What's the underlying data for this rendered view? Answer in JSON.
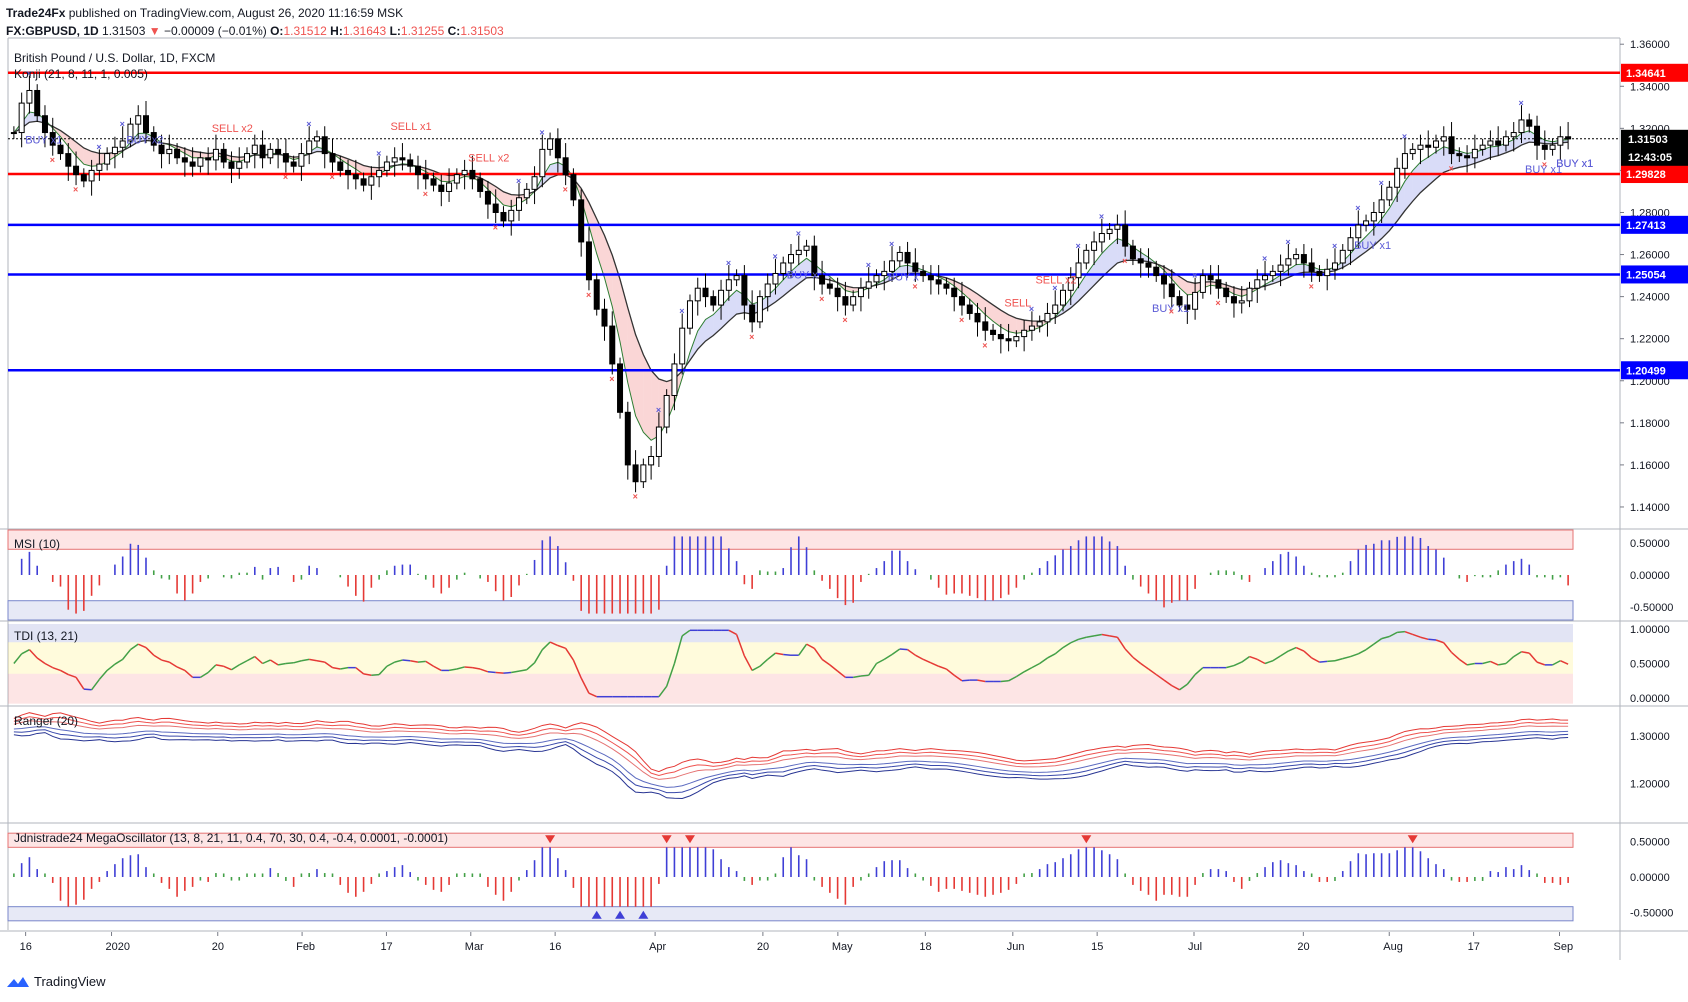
{
  "header": {
    "line1_author": "Trade24Fx",
    "line1_text": "published on TradingView.com, August 26, 2020 11:16:59 MSK",
    "symbol": "FX:GBPUSD, 1D",
    "last": "1.31503",
    "change": "−0.00009 (−0.01%)",
    "o_label": "O:",
    "o": "1.31512",
    "h_label": "H:",
    "h": "1.31643",
    "l_label": "L:",
    "l": "1.31255",
    "c_label": "C:",
    "c": "1.31503"
  },
  "footer": {
    "brand": "TradingView"
  },
  "colors": {
    "up": "#000000",
    "down": "#000000",
    "red_line": "#ff0000",
    "blue_line": "#0000ff",
    "buy": "#5b5bd6",
    "sell": "#ef5350"
  },
  "chart_data": [
    {
      "type": "candlestick",
      "title": "British Pound / U.S. Dollar, 1D, FXCM",
      "subtitle": "Konji (21, 8, 11, 1, 0.005)",
      "ylim": [
        1.13,
        1.362
      ],
      "y_ticks": [
        "1.36000",
        "1.34000",
        "1.32000",
        "1.30000",
        "1.28000",
        "1.26000",
        "1.24000",
        "1.22000",
        "1.20000",
        "1.18000",
        "1.16000",
        "1.14000"
      ],
      "x_ticks": [
        "16",
        "2020",
        "20",
        "Feb",
        "17",
        "Mar",
        "16",
        "Apr",
        "20",
        "May",
        "18",
        "Jun",
        "15",
        "Jul",
        "20",
        "Aug",
        "17",
        "Sep"
      ],
      "horizontal_lines": [
        {
          "value": 1.34641,
          "label": "1.34641",
          "color": "red"
        },
        {
          "value": 1.29828,
          "label": "1.29828",
          "color": "red"
        },
        {
          "value": 1.27413,
          "label": "1.27413",
          "color": "blue"
        },
        {
          "value": 1.25054,
          "label": "1.25054",
          "color": "blue"
        },
        {
          "value": 1.20499,
          "label": "1.20499",
          "color": "blue"
        }
      ],
      "last_price_label": "1.31503",
      "countdown_label": "12:43:05",
      "signals": [
        {
          "text": "SELL x2",
          "kind": "sell",
          "i": 27
        },
        {
          "text": "SELL x1",
          "kind": "sell",
          "i": 50
        },
        {
          "text": "SELL x2",
          "kind": "sell",
          "i": 60
        },
        {
          "text": "BUY x1",
          "kind": "buy",
          "i": 3
        },
        {
          "text": "BUY x2",
          "kind": "buy",
          "i": 16
        },
        {
          "text": "BUY x",
          "kind": "buy",
          "i": 101
        },
        {
          "text": "BUY x",
          "kind": "buy",
          "i": 114
        },
        {
          "text": "SELL x2",
          "kind": "sell",
          "i": 133
        },
        {
          "text": "SELL",
          "kind": "sell",
          "i": 129
        },
        {
          "text": "BUY x1",
          "kind": "buy",
          "i": 148
        },
        {
          "text": "BUY x1",
          "kind": "buy",
          "i": 174
        },
        {
          "text": "BUY x1",
          "kind": "buy",
          "i": 196
        },
        {
          "text": "BUY x1",
          "kind": "buy",
          "i": 200
        },
        {
          "text": "BUY x1",
          "kind": "buy",
          "i": 204
        }
      ],
      "closes": [
        1.318,
        1.332,
        1.338,
        1.326,
        1.318,
        1.312,
        1.308,
        1.302,
        1.298,
        1.295,
        1.3,
        1.303,
        1.308,
        1.311,
        1.314,
        1.322,
        1.326,
        1.318,
        1.312,
        1.308,
        1.31,
        1.306,
        1.304,
        1.302,
        1.306,
        1.305,
        1.31,
        1.304,
        1.301,
        1.304,
        1.308,
        1.312,
        1.306,
        1.31,
        1.308,
        1.304,
        1.302,
        1.308,
        1.314,
        1.316,
        1.308,
        1.304,
        1.3,
        1.298,
        1.296,
        1.293,
        1.297,
        1.3,
        1.304,
        1.306,
        1.305,
        1.302,
        1.298,
        1.296,
        1.293,
        1.29,
        1.294,
        1.298,
        1.3,
        1.296,
        1.29,
        1.284,
        1.28,
        1.276,
        1.281,
        1.287,
        1.291,
        1.297,
        1.31,
        1.315,
        1.306,
        1.298,
        1.286,
        1.266,
        1.248,
        1.234,
        1.226,
        1.208,
        1.185,
        1.16,
        1.152,
        1.16,
        1.164,
        1.178,
        1.193,
        1.208,
        1.225,
        1.238,
        1.244,
        1.24,
        1.236,
        1.243,
        1.248,
        1.25,
        1.236,
        1.228,
        1.24,
        1.246,
        1.251,
        1.256,
        1.26,
        1.262,
        1.264,
        1.25,
        1.246,
        1.244,
        1.24,
        1.236,
        1.24,
        1.244,
        1.247,
        1.25,
        1.252,
        1.257,
        1.261,
        1.256,
        1.252,
        1.25,
        1.248,
        1.246,
        1.244,
        1.24,
        1.236,
        1.232,
        1.228,
        1.224,
        1.222,
        1.22,
        1.219,
        1.221,
        1.224,
        1.226,
        1.228,
        1.232,
        1.236,
        1.243,
        1.249,
        1.256,
        1.262,
        1.266,
        1.27,
        1.272,
        1.274,
        1.264,
        1.258,
        1.256,
        1.254,
        1.25,
        1.246,
        1.24,
        1.236,
        1.234,
        1.242,
        1.25,
        1.248,
        1.244,
        1.24,
        1.237,
        1.238,
        1.244,
        1.248,
        1.25,
        1.252,
        1.255,
        1.258,
        1.26,
        1.256,
        1.252,
        1.25,
        1.253,
        1.256,
        1.262,
        1.268,
        1.274,
        1.276,
        1.28,
        1.286,
        1.292,
        1.301,
        1.308,
        1.31,
        1.312,
        1.311,
        1.314,
        1.316,
        1.308,
        1.307,
        1.306,
        1.31,
        1.312,
        1.314,
        1.312,
        1.316,
        1.318,
        1.324,
        1.321,
        1.312,
        1.31,
        1.312,
        1.316,
        1.315
      ]
    },
    {
      "type": "bar",
      "title": "MSI (10)",
      "ylim": [
        -0.7,
        0.7
      ],
      "y_ticks": [
        "0.50000",
        "0.00000",
        "-0.50000"
      ],
      "band_upper": 0.4,
      "band_lower": -0.4
    },
    {
      "type": "line",
      "title": "TDI (13, 21)",
      "ylim": [
        -0.1,
        1.1
      ],
      "y_ticks": [
        "1.00000",
        "0.50000",
        "0.00000"
      ]
    },
    {
      "type": "line",
      "title": "Ranger (20)",
      "ylim": [
        1.12,
        1.36
      ],
      "y_ticks": [
        "1.30000",
        "1.20000"
      ]
    },
    {
      "type": "bar",
      "title": "Jdnistrade24 MegaOscillator (13, 8, 21, 11, 0.4, 70, 30, 0.4, -0.4, 0.0001, -0.0001)",
      "ylim": [
        -0.75,
        0.75
      ],
      "y_ticks": [
        "0.50000",
        "0.00000",
        "-0.50000"
      ]
    }
  ]
}
